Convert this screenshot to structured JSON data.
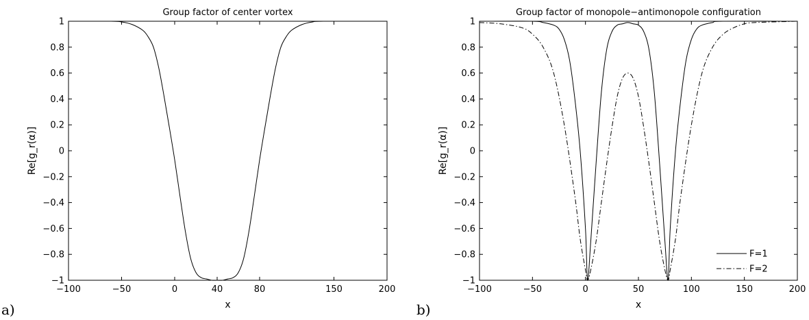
{
  "chart_data": [
    {
      "type": "line",
      "panel_label": "a)",
      "title": "Group factor of center vortex",
      "xlabel": "x",
      "ylabel": "Re[g_r(α)]",
      "xlim": [
        -100,
        200
      ],
      "ylim": [
        -1,
        1
      ],
      "xticks": [
        -100,
        -50,
        0,
        40,
        80,
        150,
        200
      ],
      "xtick_labels": [
        "−100",
        "−50",
        "0",
        "40",
        "80",
        "150",
        "200"
      ],
      "yticks": [
        1,
        0.8,
        0.6,
        0.4,
        0.2,
        0,
        -0.2,
        -0.4,
        -0.6,
        -0.8,
        -1
      ],
      "ytick_labels": [
        "1",
        "0.8",
        "0.6",
        "0.4",
        "0.2",
        "0",
        "−0.2",
        "−0.4",
        "−0.6",
        "−0.8",
        "−1"
      ],
      "grid": false,
      "series": [
        {
          "style": "solid",
          "x": [
            -100,
            -60,
            -50,
            -40,
            -30,
            -25,
            -20,
            -15,
            -10,
            -5,
            0,
            5,
            10,
            15,
            20,
            25,
            30,
            35,
            40,
            45,
            50,
            55,
            60,
            65,
            70,
            75,
            80,
            85,
            90,
            95,
            100,
            105,
            110,
            120,
            130,
            140,
            200
          ],
          "y": [
            1,
            1,
            0.995,
            0.975,
            0.93,
            0.88,
            0.8,
            0.64,
            0.42,
            0.18,
            -0.07,
            -0.35,
            -0.62,
            -0.83,
            -0.94,
            -0.98,
            -0.99,
            -1,
            -1,
            -1,
            -0.99,
            -0.98,
            -0.94,
            -0.83,
            -0.62,
            -0.35,
            -0.07,
            0.18,
            0.42,
            0.64,
            0.8,
            0.88,
            0.93,
            0.975,
            0.995,
            1,
            1
          ]
        }
      ]
    },
    {
      "type": "line",
      "panel_label": "b)",
      "title": "Group factor of monopole−antimonopole configuration",
      "xlabel": "x",
      "ylabel": "Re[g_r(α)]",
      "xlim": [
        -100,
        200
      ],
      "ylim": [
        -1,
        1
      ],
      "xticks": [
        -100,
        -50,
        0,
        50,
        100,
        150,
        200
      ],
      "xtick_labels": [
        "−100",
        "−50",
        "0",
        "50",
        "100",
        "150",
        "200"
      ],
      "yticks": [
        1,
        0.8,
        0.6,
        0.4,
        0.2,
        0,
        -0.2,
        -0.4,
        -0.6,
        -0.8,
        -1
      ],
      "ytick_labels": [
        "1",
        "0.8",
        "0.6",
        "0.4",
        "0.2",
        "0",
        "−0.2",
        "−0.4",
        "−0.6",
        "−0.8",
        "−1"
      ],
      "grid": false,
      "legend_position": "bottom-right",
      "series": [
        {
          "name": "F=1",
          "style": "solid",
          "x": [
            -100,
            -50,
            -40,
            -30,
            -25,
            -20,
            -15,
            -10,
            -5,
            0,
            2,
            5,
            10,
            15,
            20,
            25,
            30,
            35,
            40,
            45,
            50,
            55,
            60,
            65,
            70,
            75,
            78,
            80,
            85,
            90,
            95,
            100,
            105,
            110,
            120,
            130,
            200
          ],
          "y": [
            1,
            1,
            0.99,
            0.97,
            0.94,
            0.86,
            0.7,
            0.4,
            0,
            -0.6,
            -1,
            -0.7,
            -0.1,
            0.45,
            0.78,
            0.92,
            0.97,
            0.98,
            0.99,
            0.98,
            0.97,
            0.92,
            0.78,
            0.45,
            -0.1,
            -0.7,
            -1,
            -0.6,
            0,
            0.4,
            0.7,
            0.86,
            0.94,
            0.97,
            0.99,
            1,
            1
          ]
        },
        {
          "name": "F=2",
          "style": "dashdot",
          "x": [
            -100,
            -80,
            -60,
            -50,
            -40,
            -30,
            -20,
            -10,
            -5,
            0,
            2,
            5,
            10,
            15,
            20,
            25,
            30,
            35,
            40,
            45,
            50,
            55,
            60,
            65,
            70,
            75,
            78,
            80,
            85,
            90,
            100,
            110,
            120,
            130,
            140,
            150,
            160,
            200
          ],
          "y": [
            0.99,
            0.98,
            0.95,
            0.9,
            0.8,
            0.6,
            0.2,
            -0.35,
            -0.68,
            -0.92,
            -1,
            -0.92,
            -0.7,
            -0.4,
            -0.1,
            0.18,
            0.42,
            0.56,
            0.6,
            0.56,
            0.42,
            0.18,
            -0.1,
            -0.4,
            -0.7,
            -0.92,
            -1,
            -0.92,
            -0.68,
            -0.35,
            0.2,
            0.6,
            0.8,
            0.9,
            0.95,
            0.98,
            0.99,
            1
          ]
        }
      ]
    }
  ]
}
